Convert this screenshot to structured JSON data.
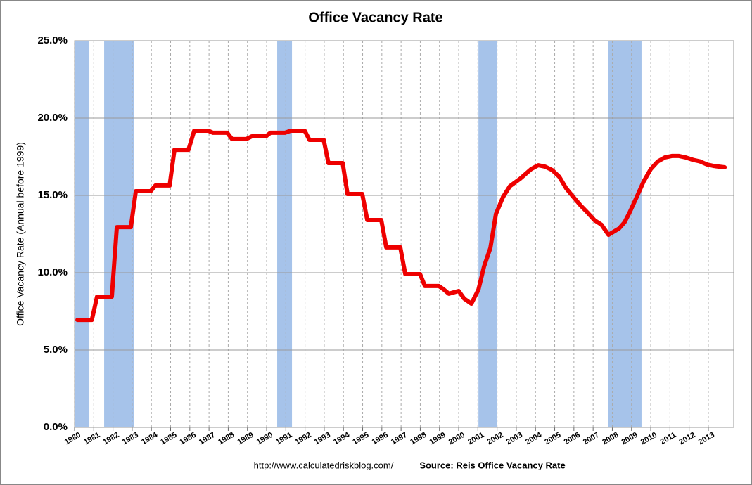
{
  "chart_data": {
    "type": "line",
    "title": "Office Vacancy Rate",
    "y_label": "Office Vacancy Rate (Annual before 1999)",
    "url": "http://www.calculatedriskblog.com/",
    "source": "Source: Reis Office Vacancy Rate",
    "color": "#ee0000",
    "recession_color": "#a6c3ea",
    "x": [
      1980.15,
      1980.9,
      1981.17,
      1981.94,
      1982.2,
      1982.93,
      1983.19,
      1983.96,
      1984.21,
      1984.95,
      1985.2,
      1985.93,
      1986.23,
      1986.96,
      1987.2,
      1987.95,
      1988.2,
      1988.94,
      1989.23,
      1989.96,
      1990.2,
      1990.95,
      1991.25,
      1991.98,
      1992.23,
      1992.97,
      1993.22,
      1993.96,
      1994.21,
      1994.98,
      1995.24,
      1995.97,
      1996.23,
      1996.96,
      1997.22,
      1997.99,
      1998.24,
      1998.97,
      1999.23,
      1999.49,
      1999.74,
      2000.0,
      2000.29,
      2000.66,
      2001.03,
      2001.32,
      2001.65,
      2001.94,
      2002.31,
      2002.67,
      2003.22,
      2003.77,
      2004.14,
      2004.5,
      2004.87,
      2005.24,
      2005.6,
      2005.97,
      2006.34,
      2006.7,
      2007.07,
      2007.44,
      2007.8,
      2008.35,
      2008.64,
      2008.9,
      2009.27,
      2009.63,
      2010.0,
      2010.37,
      2010.73,
      2011.1,
      2011.47,
      2011.83,
      2012.2,
      2012.56,
      2012.93,
      2013.3,
      2013.85
    ],
    "values": [
      6.95,
      6.95,
      8.45,
      8.45,
      12.95,
      12.95,
      15.27,
      15.27,
      15.64,
      15.64,
      17.95,
      17.95,
      19.18,
      19.18,
      19.05,
      19.05,
      18.64,
      18.64,
      18.82,
      18.82,
      19.05,
      19.05,
      19.18,
      19.18,
      18.59,
      18.59,
      17.09,
      17.09,
      15.09,
      15.09,
      13.41,
      13.41,
      11.64,
      11.64,
      9.91,
      9.91,
      9.14,
      9.14,
      8.91,
      8.64,
      8.73,
      8.82,
      8.32,
      8.0,
      8.91,
      10.4,
      11.6,
      13.8,
      14.9,
      15.6,
      16.1,
      16.7,
      16.95,
      16.86,
      16.64,
      16.2,
      15.45,
      14.9,
      14.36,
      13.9,
      13.4,
      13.1,
      12.45,
      12.86,
      13.27,
      13.9,
      14.9,
      15.9,
      16.7,
      17.2,
      17.45,
      17.55,
      17.55,
      17.45,
      17.3,
      17.2,
      17.0,
      16.9,
      16.82
    ],
    "recessions": [
      [
        1980.0,
        1980.77
      ],
      [
        1981.54,
        1983.08
      ],
      [
        1990.55,
        1991.32
      ],
      [
        2001.03,
        2002.01
      ],
      [
        2007.8,
        2009.52
      ]
    ],
    "xlim": [
      1980,
      2014.32
    ],
    "xticks": [
      1980,
      1981,
      1982,
      1983,
      1984,
      1985,
      1986,
      1987,
      1988,
      1989,
      1990,
      1991,
      1992,
      1993,
      1994,
      1995,
      1996,
      1997,
      1998,
      1999,
      2000,
      2001,
      2002,
      2003,
      2004,
      2005,
      2006,
      2007,
      2008,
      2009,
      2010,
      2011,
      2012,
      2013
    ],
    "ylim": [
      0,
      25
    ],
    "yticks": [
      {
        "value": 0,
        "label": "0.0%"
      },
      {
        "value": 5,
        "label": "5.0%"
      },
      {
        "value": 10,
        "label": "10.0%"
      },
      {
        "value": 15,
        "label": "15.0%"
      },
      {
        "value": 20,
        "label": "20.0%"
      },
      {
        "value": 25,
        "label": "25.0%"
      }
    ],
    "grid": true
  }
}
